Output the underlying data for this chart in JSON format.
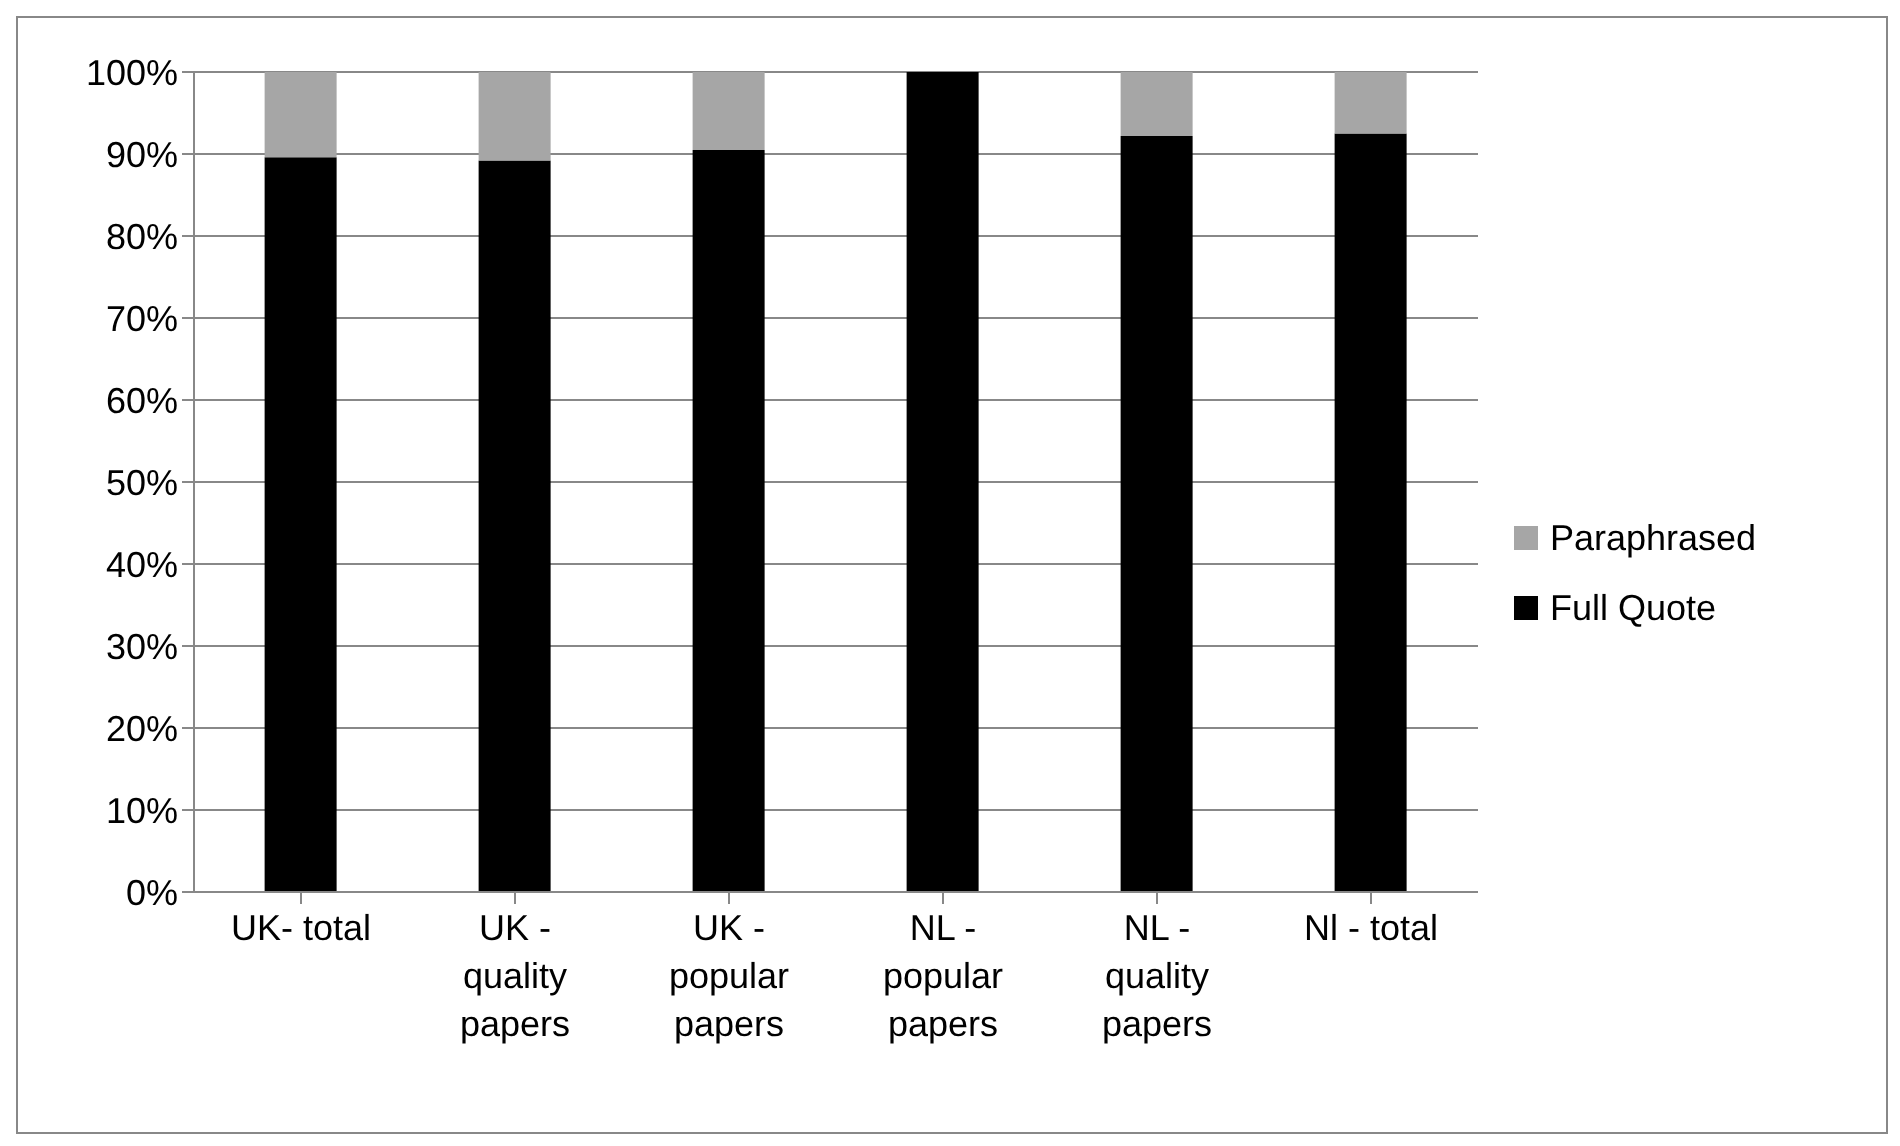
{
  "chart_data": {
    "type": "bar",
    "stacked": true,
    "categories": [
      "UK- total",
      "UK - quality papers",
      "UK - popular papers",
      "NL - popular papers",
      "NL - quality papers",
      "Nl - total"
    ],
    "series": [
      {
        "name": "Full Quote",
        "color": "#000000",
        "values": [
          89.6,
          89.2,
          90.5,
          100,
          92.2,
          92.5
        ]
      },
      {
        "name": "Paraphrased",
        "color": "#a6a6a6",
        "values": [
          10.4,
          10.8,
          9.5,
          0,
          7.8,
          7.5
        ]
      }
    ],
    "ylim": [
      0,
      100
    ],
    "yticks": [
      {
        "value": 0,
        "label": "0%"
      },
      {
        "value": 10,
        "label": "10%"
      },
      {
        "value": 20,
        "label": "20%"
      },
      {
        "value": 30,
        "label": "30%"
      },
      {
        "value": 40,
        "label": "40%"
      },
      {
        "value": 50,
        "label": "50%"
      },
      {
        "value": 60,
        "label": "60%"
      },
      {
        "value": 70,
        "label": "70%"
      },
      {
        "value": 80,
        "label": "80%"
      },
      {
        "value": 90,
        "label": "90%"
      },
      {
        "value": 100,
        "label": "100%"
      }
    ],
    "grid": "y",
    "legend": "right"
  }
}
